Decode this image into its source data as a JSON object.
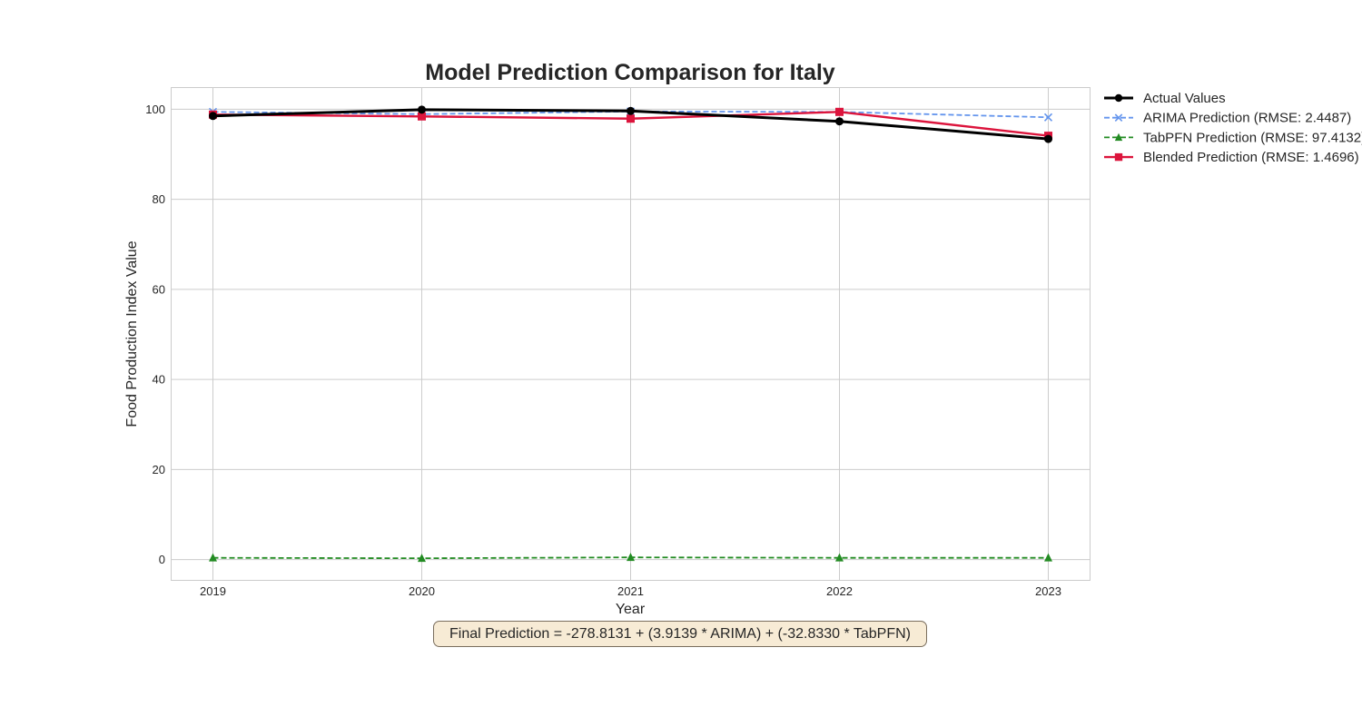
{
  "chart_data": {
    "type": "line",
    "title": "Model Prediction Comparison for Italy",
    "xlabel": "Year",
    "ylabel": "Food Production Index Value",
    "x": [
      2019,
      2020,
      2021,
      2022,
      2023
    ],
    "xlim": [
      2018.8,
      2023.2
    ],
    "ylim": [
      -4.6,
      104.8
    ],
    "yticks": [
      0,
      20,
      40,
      60,
      80,
      100
    ],
    "grid": true,
    "legend_placement": "outside top-right",
    "series": [
      {
        "name": "Actual Values",
        "values": [
          98.5,
          99.9,
          99.6,
          97.3,
          93.4
        ],
        "color": "#000000",
        "marker": "circle",
        "linestyle": "solid"
      },
      {
        "name": "ARIMA Prediction (RMSE: 2.4487)",
        "values": [
          99.4,
          98.9,
          99.5,
          99.4,
          98.2
        ],
        "color": "#6495ed",
        "marker": "x",
        "linestyle": "dashed"
      },
      {
        "name": "TabPFN Prediction (RMSE: 97.4132)",
        "values": [
          0.4,
          0.3,
          0.5,
          0.4,
          0.4
        ],
        "color": "#228b22",
        "marker": "triangle",
        "linestyle": "dashed"
      },
      {
        "name": "Blended Prediction (RMSE: 1.4696)",
        "values": [
          98.8,
          98.4,
          97.9,
          99.4,
          94.1
        ],
        "color": "#dc143c",
        "marker": "square",
        "linestyle": "solid"
      }
    ],
    "annotation": "Final Prediction = -278.8131 + (3.9139 * ARIMA) + (-32.8330 * TabPFN)"
  }
}
